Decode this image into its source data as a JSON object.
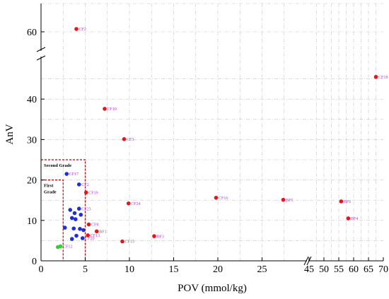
{
  "chart_data": {
    "type": "scatter",
    "xlabel": "POV (mmol/kg)",
    "ylabel": "AnV",
    "x_segments": [
      [
        0,
        30
      ],
      [
        45,
        70
      ]
    ],
    "y_segments": [
      [
        0,
        50
      ],
      [
        57,
        65
      ]
    ],
    "x_ticks": [
      0,
      5,
      10,
      15,
      20,
      25,
      45,
      50,
      55,
      60,
      65,
      70
    ],
    "x_tick_labels": [
      "0",
      "5",
      "10",
      "15",
      "20",
      "25",
      "45",
      "50",
      "55",
      "60",
      "65",
      "70"
    ],
    "y_ticks": [
      0,
      10,
      20,
      30,
      40,
      60
    ],
    "y_tick_labels": [
      "0",
      "10",
      "20",
      "30",
      "40",
      "60"
    ],
    "grid": true,
    "colors": {
      "red": "#e8141c",
      "blue": "#1f2fd8",
      "green": "#2fd32f",
      "label": "#b23cc9",
      "box": "#c00000",
      "grid": "#c8c8c8"
    },
    "grades": [
      {
        "label": "Second Grade",
        "x_max": 5,
        "y_max": 25
      },
      {
        "label": "First Grade",
        "x_max": 2.5,
        "y_max": 20
      }
    ],
    "points": [
      {
        "label": "CF2",
        "x": 4.0,
        "y": 60.5,
        "color": "red"
      },
      {
        "label": "CF18",
        "x": 67.5,
        "y": 45.5,
        "color": "red"
      },
      {
        "label": "CF10",
        "x": 7.2,
        "y": 37.6,
        "color": "red"
      },
      {
        "label": "CF3",
        "x": 9.4,
        "y": 30.1,
        "color": "red"
      },
      {
        "label": "CF17",
        "x": 2.9,
        "y": 21.5,
        "color": "blue"
      },
      {
        "label": "CF2",
        "x": 4.3,
        "y": 18.9,
        "color": "blue"
      },
      {
        "label": "CF19",
        "x": 5.1,
        "y": 16.9,
        "color": "red"
      },
      {
        "label": "CF16",
        "x": 19.8,
        "y": 15.6,
        "color": "red"
      },
      {
        "label": "BF5",
        "x": 27.4,
        "y": 15.1,
        "color": "red"
      },
      {
        "label": "BF6",
        "x": 55.8,
        "y": 14.7,
        "color": "red"
      },
      {
        "label": "CF24",
        "x": 9.9,
        "y": 14.2,
        "color": "red"
      },
      {
        "label": "CF23",
        "x": 4.3,
        "y": 12.9,
        "color": "blue"
      },
      {
        "label": "",
        "x": 3.3,
        "y": 12.6,
        "color": "blue"
      },
      {
        "label": "",
        "x": 3.8,
        "y": 11.8,
        "color": "blue"
      },
      {
        "label": "",
        "x": 4.5,
        "y": 11.4,
        "color": "blue"
      },
      {
        "label": "",
        "x": 3.5,
        "y": 10.6,
        "color": "blue"
      },
      {
        "label": "",
        "x": 3.9,
        "y": 10.3,
        "color": "blue"
      },
      {
        "label": "BF4",
        "x": 58.2,
        "y": 10.5,
        "color": "red"
      },
      {
        "label": "CF8",
        "x": 5.4,
        "y": 9.0,
        "color": "red"
      },
      {
        "label": "",
        "x": 2.7,
        "y": 8.2,
        "color": "blue"
      },
      {
        "label": "",
        "x": 3.7,
        "y": 8.0,
        "color": "blue"
      },
      {
        "label": "",
        "x": 4.4,
        "y": 7.9,
        "color": "blue"
      },
      {
        "label": "",
        "x": 4.8,
        "y": 7.6,
        "color": "blue"
      },
      {
        "label": "BF1",
        "x": 6.3,
        "y": 7.3,
        "color": "red"
      },
      {
        "label": "CF13",
        "x": 5.3,
        "y": 6.3,
        "color": "red"
      },
      {
        "label": "BF3",
        "x": 12.8,
        "y": 6.1,
        "color": "red"
      },
      {
        "label": "",
        "x": 4.0,
        "y": 6.2,
        "color": "blue"
      },
      {
        "label": "",
        "x": 3.5,
        "y": 5.4,
        "color": "blue"
      },
      {
        "label": "CF20",
        "x": 4.7,
        "y": 5.6,
        "color": "blue"
      },
      {
        "label": "CF15",
        "x": 9.2,
        "y": 4.8,
        "color": "red"
      },
      {
        "label": "CF12",
        "x": 2.2,
        "y": 3.6,
        "color": "green"
      },
      {
        "label": "",
        "x": 1.9,
        "y": 3.4,
        "color": "green"
      }
    ]
  }
}
